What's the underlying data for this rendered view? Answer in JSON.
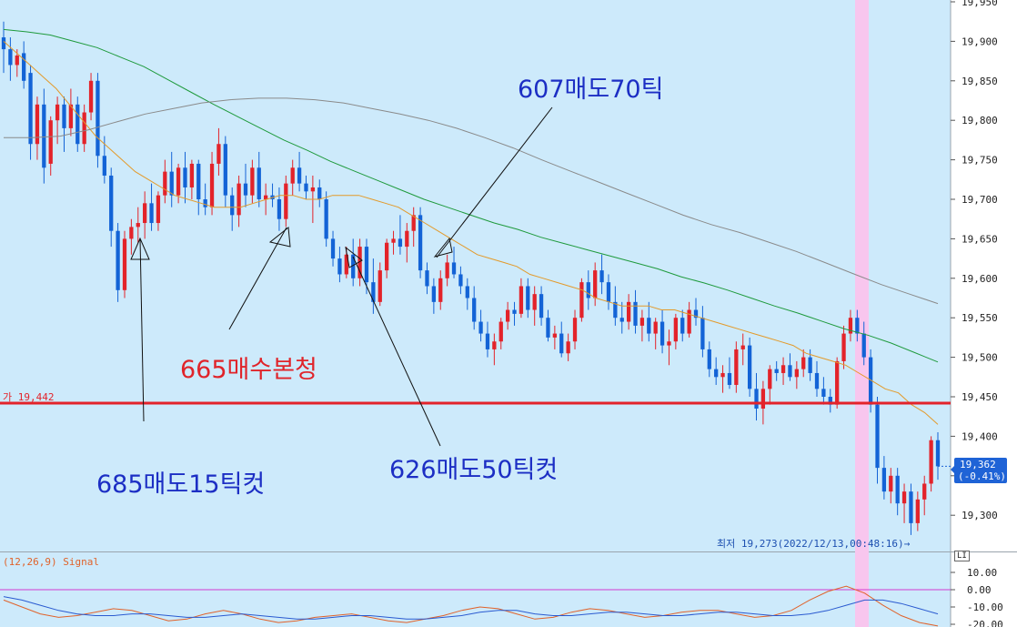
{
  "chart_data": [
    {
      "type": "candlestick",
      "title": "",
      "ylim": [
        19270,
        19950
      ],
      "y_ticks": [
        "19,950",
        "19,900",
        "19,850",
        "19,800",
        "19,750",
        "19,700",
        "19,650",
        "19,600",
        "19,550",
        "19,500",
        "19,450",
        "19,400",
        "19,350",
        "19,300"
      ],
      "candles": [
        [
          19905,
          19925,
          19860,
          19890
        ],
        [
          19890,
          19905,
          19850,
          19870
        ],
        [
          19870,
          19890,
          19855,
          19882
        ],
        [
          19885,
          19900,
          19840,
          19850
        ],
        [
          19860,
          19870,
          19750,
          19770
        ],
        [
          19770,
          19830,
          19750,
          19820
        ],
        [
          19820,
          19840,
          19720,
          19740
        ],
        [
          19745,
          19805,
          19730,
          19800
        ],
        [
          19800,
          19830,
          19770,
          19820
        ],
        [
          19820,
          19830,
          19760,
          19790
        ],
        [
          19790,
          19840,
          19780,
          19820
        ],
        [
          19820,
          19830,
          19760,
          19770
        ],
        [
          19770,
          19820,
          19760,
          19810
        ],
        [
          19810,
          19860,
          19800,
          19850
        ],
        [
          19850,
          19860,
          19740,
          19755
        ],
        [
          19755,
          19780,
          19720,
          19730
        ],
        [
          19730,
          19740,
          19640,
          19660
        ],
        [
          19660,
          19670,
          19570,
          19585
        ],
        [
          19585,
          19660,
          19575,
          19650
        ],
        [
          19650,
          19675,
          19630,
          19665
        ],
        [
          19665,
          19690,
          19645,
          19670
        ],
        [
          19670,
          19710,
          19650,
          19695
        ],
        [
          19695,
          19720,
          19660,
          19670
        ],
        [
          19670,
          19710,
          19660,
          19705
        ],
        [
          19705,
          19750,
          19695,
          19735
        ],
        [
          19735,
          19760,
          19690,
          19705
        ],
        [
          19705,
          19745,
          19695,
          19740
        ],
        [
          19740,
          19760,
          19695,
          19715
        ],
        [
          19715,
          19750,
          19700,
          19745
        ],
        [
          19745,
          19750,
          19680,
          19700
        ],
        [
          19700,
          19720,
          19680,
          19690
        ],
        [
          19690,
          19760,
          19680,
          19745
        ],
        [
          19745,
          19790,
          19730,
          19770
        ],
        [
          19770,
          19780,
          19690,
          19705
        ],
        [
          19705,
          19715,
          19660,
          19680
        ],
        [
          19680,
          19730,
          19665,
          19720
        ],
        [
          19720,
          19745,
          19690,
          19705
        ],
        [
          19705,
          19750,
          19695,
          19740
        ],
        [
          19740,
          19760,
          19690,
          19700
        ],
        [
          19700,
          19720,
          19680,
          19705
        ],
        [
          19705,
          19720,
          19690,
          19700
        ],
        [
          19700,
          19715,
          19660,
          19675
        ],
        [
          19675,
          19730,
          19665,
          19720
        ],
        [
          19720,
          19750,
          19705,
          19740
        ],
        [
          19740,
          19760,
          19710,
          19720
        ],
        [
          19720,
          19730,
          19700,
          19710
        ],
        [
          19710,
          19730,
          19670,
          19715
        ],
        [
          19715,
          19725,
          19690,
          19700
        ],
        [
          19700,
          19710,
          19640,
          19650
        ],
        [
          19650,
          19660,
          19615,
          19625
        ],
        [
          19625,
          19640,
          19595,
          19605
        ],
        [
          19605,
          19640,
          19600,
          19630
        ],
        [
          19630,
          19650,
          19590,
          19600
        ],
        [
          19600,
          19650,
          19590,
          19640
        ],
        [
          19640,
          19650,
          19580,
          19595
        ],
        [
          19595,
          19625,
          19555,
          19570
        ],
        [
          19570,
          19620,
          19565,
          19610
        ],
        [
          19610,
          19650,
          19600,
          19645
        ],
        [
          19645,
          19660,
          19630,
          19650
        ],
        [
          19650,
          19680,
          19630,
          19640
        ],
        [
          19640,
          19670,
          19620,
          19660
        ],
        [
          19660,
          19690,
          19640,
          19680
        ],
        [
          19680,
          19690,
          19600,
          19610
        ],
        [
          19610,
          19620,
          19580,
          19590
        ],
        [
          19590,
          19600,
          19555,
          19570
        ],
        [
          19570,
          19610,
          19560,
          19600
        ],
        [
          19600,
          19630,
          19590,
          19620
        ],
        [
          19620,
          19640,
          19600,
          19605
        ],
        [
          19605,
          19615,
          19580,
          19590
        ],
        [
          19590,
          19600,
          19560,
          19575
        ],
        [
          19575,
          19590,
          19535,
          19545
        ],
        [
          19545,
          19560,
          19520,
          19530
        ],
        [
          19530,
          19545,
          19500,
          19510
        ],
        [
          19510,
          19530,
          19490,
          19520
        ],
        [
          19520,
          19550,
          19510,
          19545
        ],
        [
          19545,
          19570,
          19535,
          19560
        ],
        [
          19560,
          19570,
          19540,
          19555
        ],
        [
          19555,
          19600,
          19550,
          19590
        ],
        [
          19590,
          19600,
          19550,
          19560
        ],
        [
          19560,
          19590,
          19540,
          19580
        ],
        [
          19580,
          19590,
          19540,
          19550
        ],
        [
          19550,
          19560,
          19520,
          19525
        ],
        [
          19525,
          19540,
          19510,
          19530
        ],
        [
          19530,
          19545,
          19500,
          19505
        ],
        [
          19505,
          19530,
          19495,
          19520
        ],
        [
          19520,
          19560,
          19510,
          19550
        ],
        [
          19550,
          19600,
          19545,
          19595
        ],
        [
          19595,
          19610,
          19560,
          19575
        ],
        [
          19575,
          19620,
          19565,
          19610
        ],
        [
          19610,
          19630,
          19580,
          19595
        ],
        [
          19595,
          19605,
          19560,
          19570
        ],
        [
          19570,
          19590,
          19540,
          19550
        ],
        [
          19550,
          19570,
          19530,
          19545
        ],
        [
          19545,
          19580,
          19535,
          19570
        ],
        [
          19570,
          19585,
          19530,
          19540
        ],
        [
          19540,
          19560,
          19520,
          19550
        ],
        [
          19550,
          19570,
          19520,
          19530
        ],
        [
          19530,
          19550,
          19510,
          19545
        ],
        [
          19545,
          19560,
          19505,
          19515
        ],
        [
          19515,
          19535,
          19490,
          19520
        ],
        [
          19520,
          19555,
          19510,
          19550
        ],
        [
          19550,
          19560,
          19520,
          19530
        ],
        [
          19530,
          19570,
          19525,
          19560
        ],
        [
          19560,
          19575,
          19540,
          19550
        ],
        [
          19550,
          19565,
          19500,
          19510
        ],
        [
          19510,
          19520,
          19475,
          19485
        ],
        [
          19485,
          19500,
          19465,
          19475
        ],
        [
          19475,
          19490,
          19455,
          19480
        ],
        [
          19480,
          19500,
          19460,
          19465
        ],
        [
          19465,
          19520,
          19455,
          19510
        ],
        [
          19510,
          19530,
          19490,
          19515
        ],
        [
          19515,
          19525,
          19450,
          19460
        ],
        [
          19460,
          19480,
          19420,
          19435
        ],
        [
          19435,
          19470,
          19415,
          19460
        ],
        [
          19460,
          19490,
          19440,
          19485
        ],
        [
          19485,
          19495,
          19470,
          19480
        ],
        [
          19480,
          19500,
          19465,
          19490
        ],
        [
          19490,
          19505,
          19470,
          19475
        ],
        [
          19475,
          19495,
          19460,
          19485
        ],
        [
          19485,
          19510,
          19475,
          19500
        ],
        [
          19500,
          19510,
          19470,
          19480
        ],
        [
          19480,
          19495,
          19450,
          19460
        ],
        [
          19460,
          19475,
          19440,
          19450
        ],
        [
          19450,
          19460,
          19430,
          19440
        ],
        [
          19440,
          19500,
          19435,
          19495
        ],
        [
          19495,
          19540,
          19485,
          19530
        ],
        [
          19530,
          19560,
          19520,
          19550
        ],
        [
          19550,
          19560,
          19520,
          19530
        ],
        [
          19530,
          19545,
          19490,
          19500
        ],
        [
          19500,
          19510,
          19430,
          19440
        ],
        [
          19440,
          19450,
          19340,
          19360
        ],
        [
          19360,
          19375,
          19320,
          19330
        ],
        [
          19330,
          19360,
          19315,
          19350
        ],
        [
          19350,
          19360,
          19300,
          19315
        ],
        [
          19315,
          19340,
          19290,
          19330
        ],
        [
          19330,
          19340,
          19275,
          19290
        ],
        [
          19290,
          19330,
          19280,
          19320
        ],
        [
          19320,
          19350,
          19300,
          19340
        ],
        [
          19340,
          19400,
          19330,
          19395
        ],
        [
          19395,
          19405,
          19345,
          19362
        ]
      ],
      "up_color": "#e3232a",
      "down_color": "#1363d6",
      "ma_lines": [
        {
          "color": "#e39a2a",
          "values": [
            19900,
            19885,
            19870,
            19855,
            19840,
            19820,
            19800,
            19780,
            19765,
            19750,
            19735,
            19725,
            19715,
            19705,
            19700,
            19695,
            19690,
            19690,
            19690,
            19695,
            19700,
            19705,
            19705,
            19700,
            19700,
            19705,
            19705,
            19705,
            19700,
            19695,
            19690,
            19680,
            19670,
            19660,
            19650,
            19640,
            19630,
            19625,
            19620,
            19615,
            19605,
            19600,
            19595,
            19590,
            19585,
            19575,
            19570,
            19565,
            19565,
            19565,
            19560,
            19560,
            19555,
            19550,
            19545,
            19540,
            19535,
            19530,
            19525,
            19520,
            19515,
            19505,
            19500,
            19495,
            19490,
            19480,
            19470,
            19460,
            19455,
            19440,
            19430,
            19415
          ]
        },
        {
          "color": "#1e9a3c",
          "values": [
            19915,
            19912,
            19908,
            19900,
            19892,
            19880,
            19868,
            19852,
            19836,
            19820,
            19805,
            19790,
            19775,
            19762,
            19748,
            19736,
            19724,
            19712,
            19700,
            19690,
            19680,
            19670,
            19662,
            19652,
            19644,
            19636,
            19628,
            19620,
            19612,
            19602,
            19594,
            19585,
            19575,
            19565,
            19556,
            19546,
            19536,
            19528,
            19518,
            19506,
            19494
          ]
        },
        {
          "color": "#8a8a8a",
          "values": [
            19778,
            19778,
            19780,
            19788,
            19798,
            19808,
            19815,
            19822,
            19826,
            19828,
            19828,
            19826,
            19822,
            19815,
            19808,
            19800,
            19790,
            19778,
            19765,
            19750,
            19736,
            19722,
            19708,
            19694,
            19680,
            19668,
            19658,
            19646,
            19634,
            19620,
            19606,
            19592,
            19580,
            19568
          ]
        }
      ],
      "horizontal_line": {
        "value": 19442,
        "label": "가 19,442",
        "color": "#e3232a"
      },
      "current_price": {
        "value": 19362,
        "label": "19,362",
        "change": "(-0.41%)"
      },
      "low_annotation": "최저 19,273(2022/12/13,00:48:16)→",
      "highlight_color": "#f8c6ee",
      "annotations": [
        {
          "text": "607매도70틱",
          "color": "#1c2ec4"
        },
        {
          "text": "665매수본청",
          "color": "#e0242a"
        },
        {
          "text": "685매도15틱컷",
          "color": "#1c2ec4"
        },
        {
          "text": "626매도50틱컷",
          "color": "#1c2ec4"
        }
      ]
    },
    {
      "type": "line",
      "title": "(12,26,9) Signal",
      "y_ticks": [
        "10.00",
        "0.00",
        "-10.00",
        "-20.00"
      ],
      "ylim": [
        -22,
        16
      ],
      "zero_line_color": "#d43ad0",
      "series": [
        {
          "color": "#e0622a",
          "values": [
            -6,
            -10,
            -14,
            -16,
            -15,
            -13,
            -11,
            -12,
            -15,
            -18,
            -17,
            -14,
            -12,
            -14,
            -17,
            -19,
            -18,
            -16,
            -15,
            -14,
            -16,
            -18,
            -19,
            -17,
            -15,
            -12,
            -10,
            -11,
            -14,
            -17,
            -16,
            -13,
            -11,
            -12,
            -14,
            -16,
            -15,
            -13,
            -12,
            -12,
            -14,
            -16,
            -15,
            -12,
            -6,
            -1,
            2,
            -2,
            -9,
            -15,
            -19,
            -21
          ]
        },
        {
          "color": "#2a5ad0",
          "values": [
            -4,
            -6,
            -9,
            -12,
            -14,
            -15,
            -15,
            -14,
            -14,
            -15,
            -16,
            -16,
            -15,
            -14,
            -15,
            -16,
            -17,
            -17,
            -16,
            -15,
            -15,
            -16,
            -17,
            -17,
            -16,
            -15,
            -13,
            -12,
            -12,
            -14,
            -15,
            -15,
            -14,
            -13,
            -13,
            -14,
            -15,
            -15,
            -14,
            -13,
            -13,
            -14,
            -15,
            -15,
            -14,
            -12,
            -9,
            -6,
            -6,
            -8,
            -11,
            -14
          ]
        }
      ]
    }
  ],
  "axis_labels": {
    "panel_button": "LI"
  }
}
